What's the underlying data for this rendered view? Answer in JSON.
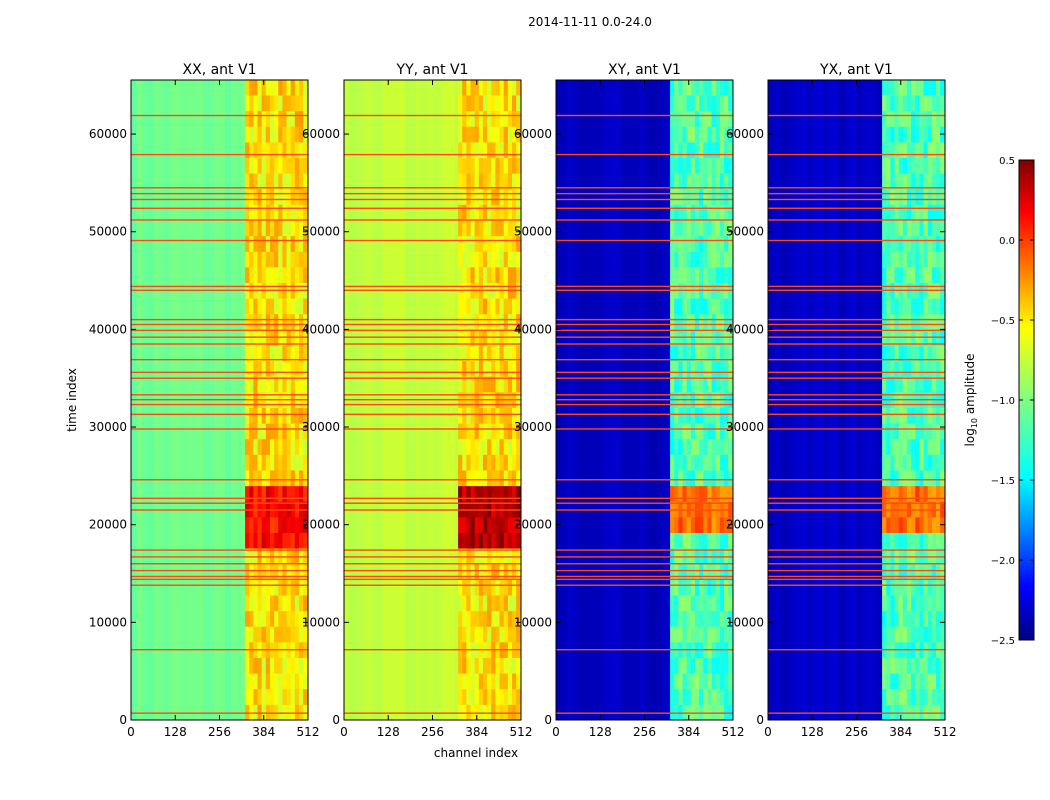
{
  "chart_data": {
    "type": "heatmap",
    "suptitle": "2014-11-11 0.0-24.0",
    "xlabel": "channel index",
    "ylabel": "time index",
    "xlim": [
      0,
      512
    ],
    "ylim": [
      0,
      65536
    ],
    "x_ticks": [
      0,
      128,
      256,
      384,
      512
    ],
    "x_tick_labels": [
      "0",
      "128",
      "256",
      "384",
      "512"
    ],
    "y_ticks": [
      0,
      10000,
      20000,
      30000,
      40000,
      50000,
      60000
    ],
    "y_tick_labels": [
      "0",
      "10000",
      "20000",
      "30000",
      "40000",
      "50000",
      "60000"
    ],
    "colorbar": {
      "label_prefix": "log",
      "label_sub": "10",
      "label_suffix": " amplitude",
      "range": [
        -2.5,
        0.5
      ],
      "ticks": [
        -2.5,
        -2.0,
        -1.5,
        -1.0,
        -0.5,
        0.0,
        0.5
      ],
      "tick_labels": [
        "−2.5",
        "−2.0",
        "−1.5",
        "−1.0",
        "−0.5",
        "0.0",
        "0.5"
      ],
      "colormap": "jet"
    },
    "flagged_time_rows": [
      700,
      7200,
      13800,
      14400,
      14700,
      15300,
      16000,
      16700,
      17400,
      21500,
      22200,
      22700,
      24600,
      29800,
      31300,
      32300,
      32800,
      33300,
      35000,
      35600,
      36900,
      38500,
      39200,
      39900,
      40500,
      41000,
      44000,
      44400,
      49100,
      51200,
      52400,
      53300,
      53900,
      54500,
      57900,
      61900
    ],
    "flag_color": "#ff4a16",
    "panels": [
      {
        "title": "XX, ant V1",
        "background_level": -1.05,
        "band_level": -0.55,
        "band_channels": [
          330,
          500
        ],
        "hot_time_range": [
          16500,
          23500
        ],
        "hot_level": 0.1,
        "show_y_tick_labels": true,
        "show_x_label": false
      },
      {
        "title": "YY, ant V1",
        "background_level": -0.8,
        "band_level": -0.55,
        "band_channels": [
          330,
          500
        ],
        "hot_time_range": [
          17500,
          22500
        ],
        "hot_level": 0.35,
        "show_y_tick_labels": true,
        "show_x_label": true
      },
      {
        "title": "XY, ant V1",
        "background_level": -2.3,
        "band_level": -1.15,
        "band_channels": [
          330,
          500
        ],
        "hot_time_range": [
          18500,
          22500
        ],
        "hot_level": -0.2,
        "show_y_tick_labels": true,
        "show_x_label": false
      },
      {
        "title": "YX, ant V1",
        "background_level": -2.3,
        "band_level": -1.15,
        "band_channels": [
          330,
          500
        ],
        "hot_time_range": [
          18500,
          22500
        ],
        "hot_level": -0.2,
        "show_y_tick_labels": true,
        "show_x_label": false
      }
    ]
  }
}
